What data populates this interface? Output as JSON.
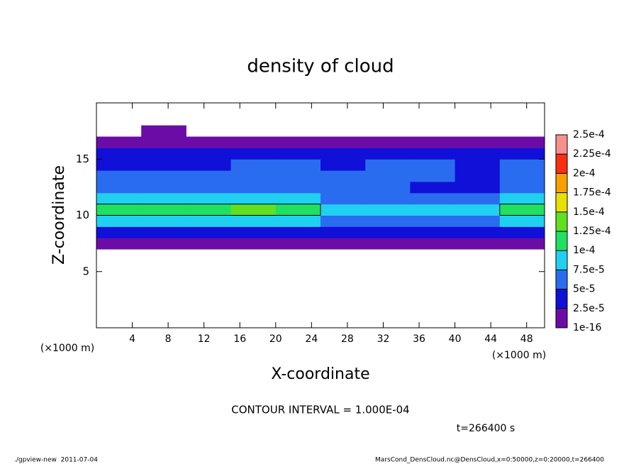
{
  "chart_data": {
    "type": "contour",
    "title": "density of cloud",
    "x_label": "X-coordinate",
    "y_label": "Z-coordinate",
    "x_unit": "(×1000 m)",
    "y_unit": "(×1000 m)",
    "xlim": [
      0,
      50
    ],
    "ylim": [
      0,
      20
    ],
    "xticks": [
      4,
      8,
      12,
      16,
      20,
      24,
      28,
      32,
      36,
      40,
      44,
      48
    ],
    "yticks": [
      5,
      10,
      15
    ],
    "x": [
      2.5,
      7.5,
      12.5,
      17.5,
      22.5,
      27.5,
      32.5,
      37.5,
      42.5,
      47.5
    ],
    "z": [
      7.5,
      8.5,
      9.5,
      10.5,
      11.5,
      12.5,
      13.5,
      14.5,
      15.5,
      16.5,
      17.5
    ],
    "values": [
      [
        1.5e-05,
        1.5e-05,
        1.5e-05,
        1.5e-05,
        1.5e-05,
        1.5e-05,
        1.5e-05,
        1.5e-05,
        1.5e-05,
        1.5e-05
      ],
      [
        4e-05,
        4e-05,
        4e-05,
        4e-05,
        4e-05,
        4e-05,
        4e-05,
        4e-05,
        4e-05,
        4e-05
      ],
      [
        8e-05,
        8e-05,
        8e-05,
        8.5e-05,
        8e-05,
        7e-05,
        7e-05,
        7e-05,
        7e-05,
        7.5e-05
      ],
      [
        0.00011,
        0.000115,
        0.00012,
        0.00013,
        0.000105,
        9e-05,
        8.5e-05,
        8e-05,
        9e-05,
        0.000102
      ],
      [
        9e-05,
        9.5e-05,
        9e-05,
        8.5e-05,
        8e-05,
        7e-05,
        6.5e-05,
        6e-05,
        7e-05,
        8e-05
      ],
      [
        6e-05,
        6e-05,
        6e-05,
        6e-05,
        6.5e-05,
        6e-05,
        6e-05,
        4e-05,
        3.5e-05,
        6e-05
      ],
      [
        5.5e-05,
        5e-05,
        5e-05,
        5.5e-05,
        6e-05,
        5.5e-05,
        6e-05,
        5.5e-05,
        3.5e-05,
        5.5e-05
      ],
      [
        4.5e-05,
        4.2e-05,
        4.5e-05,
        5e-05,
        5e-05,
        4.8e-05,
        5.5e-05,
        5e-05,
        4.5e-05,
        5e-05
      ],
      [
        3e-05,
        3e-05,
        3e-05,
        3e-05,
        3e-05,
        3e-05,
        3e-05,
        3e-05,
        3e-05,
        3e-05
      ],
      [
        1e-05,
        1e-05,
        1e-05,
        1e-05,
        1e-05,
        1e-05,
        1e-05,
        1e-05,
        1e-05,
        1e-05
      ],
      [
        null,
        5e-06,
        null,
        null,
        null,
        null,
        null,
        null,
        null,
        null
      ]
    ],
    "levels": [
      {
        "value": 1e-16,
        "label": "1e-16"
      },
      {
        "value": 2.5e-05,
        "label": "2.5e-5"
      },
      {
        "value": 5e-05,
        "label": "5e-5"
      },
      {
        "value": 7.5e-05,
        "label": "7.5e-5"
      },
      {
        "value": 0.0001,
        "label": "1e-4"
      },
      {
        "value": 0.000125,
        "label": "1.25e-4"
      },
      {
        "value": 0.00015,
        "label": "1.5e-4"
      },
      {
        "value": 0.000175,
        "label": "1.75e-4"
      },
      {
        "value": 0.0002,
        "label": "2e-4"
      },
      {
        "value": 0.000225,
        "label": "2.25e-4"
      },
      {
        "value": 0.00025,
        "label": "2.5e-4"
      }
    ],
    "colors": [
      "#6c0ca6",
      "#1010d8",
      "#2a6cf0",
      "#20d0f0",
      "#20e060",
      "#60e020",
      "#e8e000",
      "#f8a000",
      "#f83010",
      "#f89090"
    ],
    "contour_interval": {
      "value": 0.0001,
      "label": "CONTOUR INTERVAL = 1.000E-04"
    },
    "time_label": "t=266400 s",
    "footer_left": "./gpview-new  2011-07-04",
    "footer_right": "MarsCond_DensCloud.nc@DensCloud,x=0:50000,z=0:20000,t=266400"
  }
}
